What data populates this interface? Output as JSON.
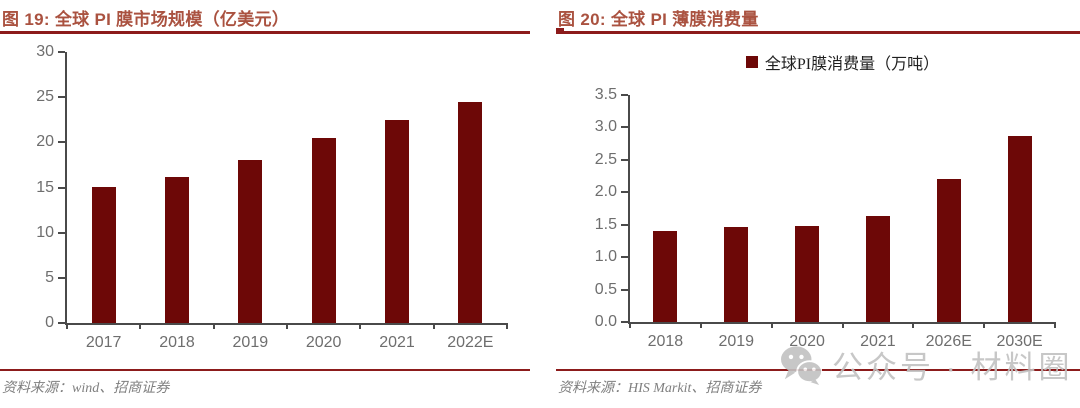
{
  "figures": [
    {
      "title": "图 19: 全球 PI 膜市场规模（亿美元）",
      "title_color": "#aa5240",
      "rule_color": "#8c1b1b",
      "source": "资料来源：wind、招商证券"
    },
    {
      "title": "图 20: 全球 PI 薄膜消费量",
      "title_color": "#aa5240",
      "rule_color": "#8c1b1b",
      "legend": {
        "label": "全球PI膜消费量（万吨）",
        "color": "#6d0807"
      },
      "source": "资料来源：HIS Markit、招商证券"
    }
  ],
  "chart_data": [
    {
      "type": "bar",
      "title": "全球PI膜市场规模（亿美元）",
      "categories": [
        "2017",
        "2018",
        "2019",
        "2020",
        "2021",
        "2022E"
      ],
      "values": [
        15.1,
        16.2,
        18.0,
        20.5,
        22.5,
        24.5
      ],
      "ylim": [
        0,
        30
      ],
      "ytick_step": 5,
      "yticks": [
        "0",
        "5",
        "10",
        "15",
        "20",
        "25",
        "30"
      ],
      "bar_color": "#6d0807",
      "grid": false,
      "legend_position": "none",
      "xlabel": "",
      "ylabel": ""
    },
    {
      "type": "bar",
      "title": "全球PI薄膜消费量",
      "series_name": "全球PI膜消费量（万吨）",
      "categories": [
        "2018",
        "2019",
        "2020",
        "2021",
        "2026E",
        "2030E"
      ],
      "values": [
        1.4,
        1.46,
        1.48,
        1.63,
        2.2,
        2.87
      ],
      "ylim": [
        0,
        3.5
      ],
      "ytick_step": 0.5,
      "yticks": [
        "0.0",
        "0.5",
        "1.0",
        "1.5",
        "2.0",
        "2.5",
        "3.0",
        "3.5"
      ],
      "bar_color": "#6d0807",
      "grid": false,
      "legend_position": "top",
      "xlabel": "",
      "ylabel": ""
    }
  ],
  "watermark": {
    "icon": "wechat-icon",
    "text": "公众号 · 材料圈",
    "color": "#c2c2c2"
  }
}
